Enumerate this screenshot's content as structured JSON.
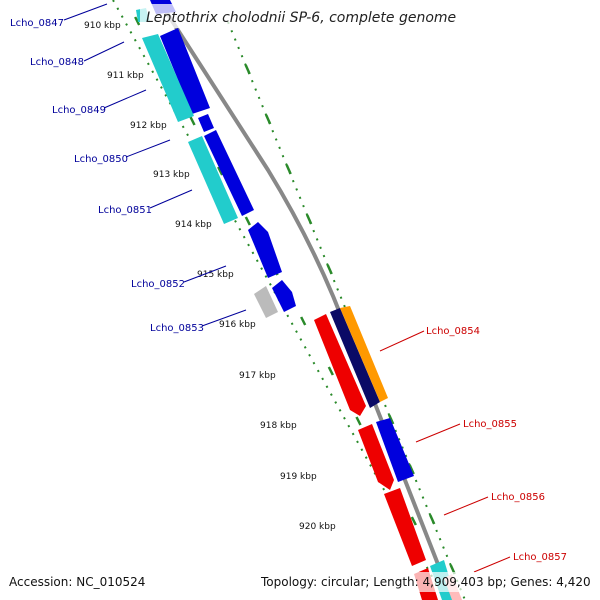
{
  "title": "Leptothrix cholodnii SP-6, complete genome",
  "accession": "Accession: NC_010524",
  "topology": "Topology: circular; Length: 4,909,403 bp; Genes: 4,420",
  "colors": {
    "left_label": "#00009a",
    "right_label": "#cc0000",
    "tick": "#2a8a2a",
    "backbone": "#888888",
    "gene_blue": "#0000dd",
    "gene_cyan": "#22cccc",
    "gene_red": "#ee0000",
    "gene_orange": "#ff9900",
    "gene_navy": "#0a0a66",
    "gene_grey": "#bbbbbb"
  },
  "ticks": [
    "910 kbp",
    "911 kbp",
    "912 kbp",
    "913 kbp",
    "914 kbp",
    "915 kbp",
    "916 kbp",
    "917 kbp",
    "918 kbp",
    "919 kbp",
    "920 kbp"
  ],
  "left_genes": [
    "Lcho_0847",
    "Lcho_0848",
    "Lcho_0849",
    "Lcho_0850",
    "Lcho_0851",
    "Lcho_0852",
    "Lcho_0853"
  ],
  "right_genes": [
    "Lcho_0854",
    "Lcho_0855",
    "Lcho_0856",
    "Lcho_0857"
  ]
}
